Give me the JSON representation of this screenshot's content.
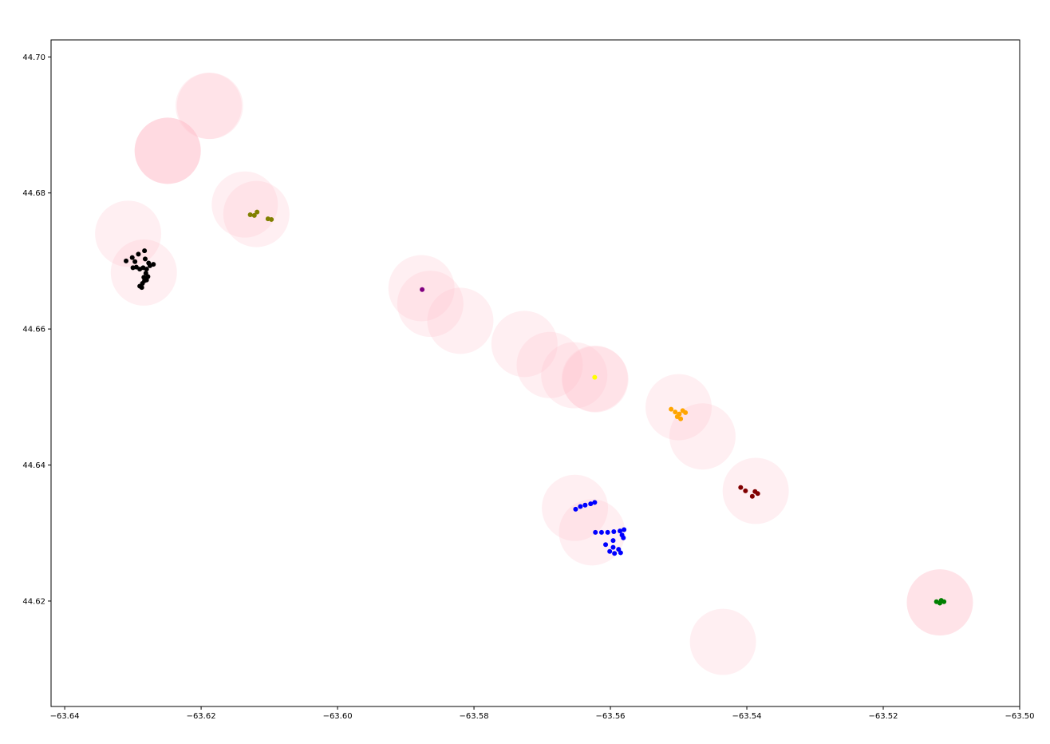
{
  "chart_data": {
    "type": "scatter",
    "title": "",
    "xlabel": "",
    "ylabel": "",
    "xlim": [
      -63.642,
      -63.5
    ],
    "ylim": [
      44.6045,
      44.7025
    ],
    "grid": false,
    "xticks": [
      -63.64,
      -63.62,
      -63.6,
      -63.58,
      -63.56,
      -63.54,
      -63.52,
      -63.5
    ],
    "yticks": [
      44.62,
      44.64,
      44.66,
      44.68,
      44.7
    ],
    "xtick_labels": [
      "−63.64",
      "−63.62",
      "−63.60",
      "−63.58",
      "−63.56",
      "−63.54",
      "−63.52",
      "−63.50"
    ],
    "ytick_labels": [
      "44.62",
      "44.64",
      "44.66",
      "44.68",
      "44.70"
    ],
    "radius_circles": {
      "color": "#ffc0cb",
      "opacity": 0.25,
      "radius_deg": 0.00485,
      "centers": [
        [
          -63.6187,
          44.6928
        ],
        [
          -63.6189,
          44.6928
        ],
        [
          -63.6249,
          44.6862
        ],
        [
          -63.6249,
          44.6862
        ],
        [
          -63.6249,
          44.6862
        ],
        [
          -63.6136,
          44.6783
        ],
        [
          -63.6119,
          44.6769
        ],
        [
          -63.6307,
          44.674
        ],
        [
          -63.6284,
          44.6683
        ],
        [
          -63.5877,
          44.666
        ],
        [
          -63.5864,
          44.6637
        ],
        [
          -63.582,
          44.6612
        ],
        [
          -63.5726,
          44.6578
        ],
        [
          -63.5689,
          44.6547
        ],
        [
          -63.5653,
          44.6532
        ],
        [
          -63.5623,
          44.6527
        ],
        [
          -63.5622,
          44.6526
        ],
        [
          -63.55,
          44.6485
        ],
        [
          -63.5465,
          44.6442
        ],
        [
          -63.5387,
          44.6362
        ],
        [
          -63.5652,
          44.6337
        ],
        [
          -63.5627,
          44.6301
        ],
        [
          -63.5117,
          44.6198
        ],
        [
          -63.5117,
          44.6198
        ],
        [
          -63.5435,
          44.614
        ]
      ]
    },
    "series": [
      {
        "color": "#000000",
        "points": [
          [
            -63.6297,
            44.6699
          ],
          [
            -63.6301,
            44.6705
          ],
          [
            -63.6292,
            44.671
          ],
          [
            -63.6283,
            44.6715
          ],
          [
            -63.6282,
            44.6703
          ],
          [
            -63.6277,
            44.6697
          ],
          [
            -63.627,
            44.6695
          ],
          [
            -63.63,
            44.669
          ],
          [
            -63.6295,
            44.6691
          ],
          [
            -63.629,
            44.6688
          ],
          [
            -63.6285,
            44.669
          ],
          [
            -63.628,
            44.6688
          ],
          [
            -63.6275,
            44.6693
          ],
          [
            -63.6281,
            44.6682
          ],
          [
            -63.6284,
            44.6676
          ],
          [
            -63.628,
            44.6672
          ],
          [
            -63.6286,
            44.6667
          ],
          [
            -63.629,
            44.6663
          ],
          [
            -63.6287,
            44.6661
          ],
          [
            -63.6283,
            44.6671
          ],
          [
            -63.6278,
            44.6677
          ],
          [
            -63.631,
            44.67
          ]
        ]
      },
      {
        "color": "#808000",
        "points": [
          [
            -63.6128,
            44.6768
          ],
          [
            -63.6122,
            44.6767
          ],
          [
            -63.6118,
            44.6772
          ],
          [
            -63.6102,
            44.6762
          ],
          [
            -63.6097,
            44.6761
          ]
        ]
      },
      {
        "color": "#800080",
        "points": [
          [
            -63.5876,
            44.6658
          ]
        ]
      },
      {
        "color": "#ffff00",
        "points": [
          [
            -63.5623,
            44.6529
          ]
        ]
      },
      {
        "color": "#ffa500",
        "points": [
          [
            -63.5511,
            44.6482
          ],
          [
            -63.5505,
            44.6478
          ],
          [
            -63.5499,
            44.6475
          ],
          [
            -63.5494,
            44.648
          ],
          [
            -63.5502,
            44.6471
          ],
          [
            -63.5497,
            44.6468
          ],
          [
            -63.549,
            44.6477
          ]
        ]
      },
      {
        "color": "#800000",
        "points": [
          [
            -63.5409,
            44.6367
          ],
          [
            -63.5402,
            44.6362
          ],
          [
            -63.5388,
            44.6361
          ],
          [
            -63.5384,
            44.6358
          ],
          [
            -63.5392,
            44.6354
          ]
        ]
      },
      {
        "color": "#0000ff",
        "points": [
          [
            -63.5651,
            44.6335
          ],
          [
            -63.5644,
            44.6339
          ],
          [
            -63.5637,
            44.6341
          ],
          [
            -63.5629,
            44.6343
          ],
          [
            -63.5623,
            44.6345
          ],
          [
            -63.5622,
            44.6301
          ],
          [
            -63.5613,
            44.6301
          ],
          [
            -63.5604,
            44.6301
          ],
          [
            -63.5595,
            44.6302
          ],
          [
            -63.5586,
            44.6303
          ],
          [
            -63.558,
            44.6305
          ],
          [
            -63.5583,
            44.6297
          ],
          [
            -63.5581,
            44.6293
          ],
          [
            -63.5596,
            44.6289
          ],
          [
            -63.5607,
            44.6283
          ],
          [
            -63.5596,
            44.6279
          ],
          [
            -63.5601,
            44.6273
          ],
          [
            -63.5594,
            44.627
          ],
          [
            -63.5588,
            44.6276
          ],
          [
            -63.5585,
            44.6271
          ]
        ]
      },
      {
        "color": "#008000",
        "points": [
          [
            -63.5122,
            44.6199
          ],
          [
            -63.5117,
            44.6197
          ],
          [
            -63.5111,
            44.6199
          ],
          [
            -63.5115,
            44.6201
          ]
        ]
      }
    ]
  }
}
